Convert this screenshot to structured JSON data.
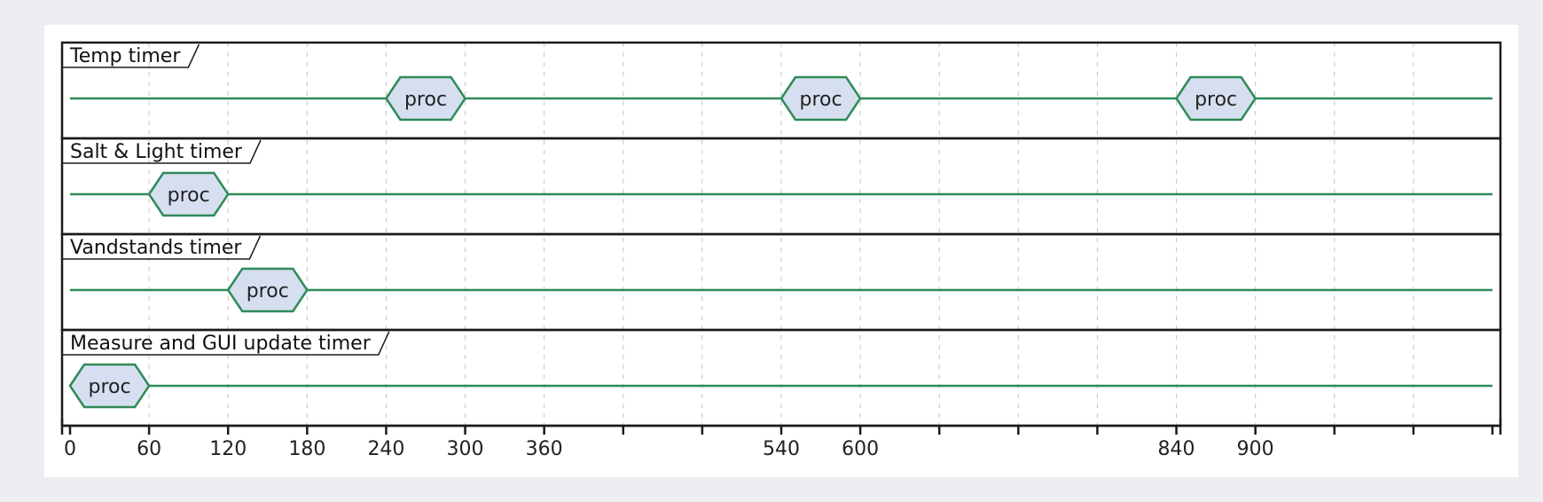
{
  "timeline": {
    "domain": [
      0,
      1080
    ],
    "tick_values": [
      0,
      60,
      120,
      180,
      240,
      300,
      360,
      420,
      480,
      540,
      600,
      660,
      720,
      780,
      840,
      900,
      960,
      1020,
      1080
    ],
    "tick_labels": [
      "0",
      "60",
      "120",
      "180",
      "240",
      "300",
      "360",
      "540",
      "600",
      "840",
      "900"
    ],
    "line_color": "#2e8b57",
    "state_fill": "#d6dff0"
  },
  "lanes": [
    {
      "name": "Temp timer",
      "events": [
        {
          "label": "proc",
          "start": 240,
          "end": 300
        },
        {
          "label": "proc",
          "start": 540,
          "end": 600
        },
        {
          "label": "proc",
          "start": 840,
          "end": 900
        }
      ]
    },
    {
      "name": "Salt & Light timer",
      "events": [
        {
          "label": "proc",
          "start": 60,
          "end": 120
        }
      ]
    },
    {
      "name": "Vandstands timer",
      "events": [
        {
          "label": "proc",
          "start": 120,
          "end": 180
        }
      ]
    },
    {
      "name": "Measure and GUI update timer",
      "events": [
        {
          "label": "proc",
          "start": 0,
          "end": 60
        }
      ]
    }
  ]
}
